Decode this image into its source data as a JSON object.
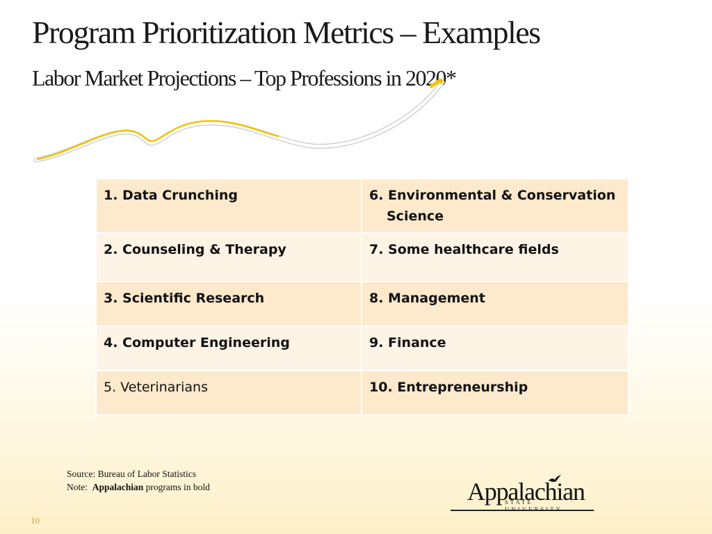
{
  "slide": {
    "title": "Program Prioritization Metrics – Examples",
    "subtitle": "Labor Market Projections – Top Professions in 2020*",
    "page_number": "10"
  },
  "table": {
    "rows": [
      {
        "left": "1. Data Crunching",
        "left_bold": true,
        "right": "6. Environmental & Conservation Science",
        "right_bold": true
      },
      {
        "left": "2. Counseling & Therapy",
        "left_bold": true,
        "right": "7. Some healthcare fields",
        "right_bold": true
      },
      {
        "left": "3. Scientific Research",
        "left_bold": true,
        "right": "8. Management",
        "right_bold": true
      },
      {
        "left": "4. Computer Engineering",
        "left_bold": true,
        "right": "9. Finance",
        "right_bold": true
      },
      {
        "left": "5. Veterinarians",
        "left_bold": false,
        "right": "10. Entrepreneurship",
        "right_bold": true
      }
    ]
  },
  "notes": {
    "source": "Source:  Bureau of Labor Statistics",
    "note_prefix": "Note:  ",
    "note_bold": "Appalachian",
    "note_suffix": " programs in bold"
  },
  "logo": {
    "name": "Appalachian",
    "tagline": "STATE UNIVERSITY"
  },
  "colors": {
    "swoosh_gold": "#f2c200",
    "row_dark": "#fde9cc",
    "row_light": "#fef4e6"
  }
}
